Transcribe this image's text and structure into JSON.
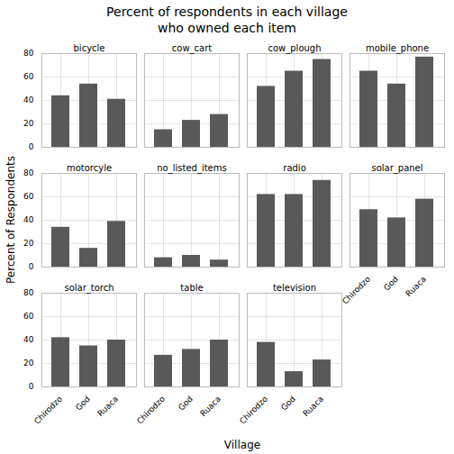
{
  "chart_data": {
    "type": "bar",
    "title": "Percent of respondents in each village\nwho owned each item",
    "xlabel": "Village",
    "ylabel": "Percent of Respondents",
    "categories": [
      "Chirodzo",
      "God",
      "Ruaca"
    ],
    "series": [
      {
        "name": "bicycle",
        "values": [
          44,
          54,
          41
        ]
      },
      {
        "name": "cow_cart",
        "values": [
          15,
          23,
          28
        ]
      },
      {
        "name": "cow_plough",
        "values": [
          52,
          65,
          75
        ]
      },
      {
        "name": "mobile_phone",
        "values": [
          65,
          54,
          77
        ]
      },
      {
        "name": "motorcyle",
        "values": [
          34,
          16,
          39
        ]
      },
      {
        "name": "no_listed_items",
        "values": [
          8,
          10,
          6
        ]
      },
      {
        "name": "radio",
        "values": [
          62,
          62,
          74
        ]
      },
      {
        "name": "solar_panel",
        "values": [
          49,
          42,
          58
        ]
      },
      {
        "name": "solar_torch",
        "values": [
          42,
          35,
          40
        ]
      },
      {
        "name": "table",
        "values": [
          27,
          32,
          40
        ]
      },
      {
        "name": "television",
        "values": [
          38,
          13,
          23
        ]
      }
    ],
    "color": "#595959",
    "ylim": [
      0,
      80
    ],
    "yticks": [
      0,
      20,
      40,
      60,
      80
    ],
    "grid": true
  }
}
